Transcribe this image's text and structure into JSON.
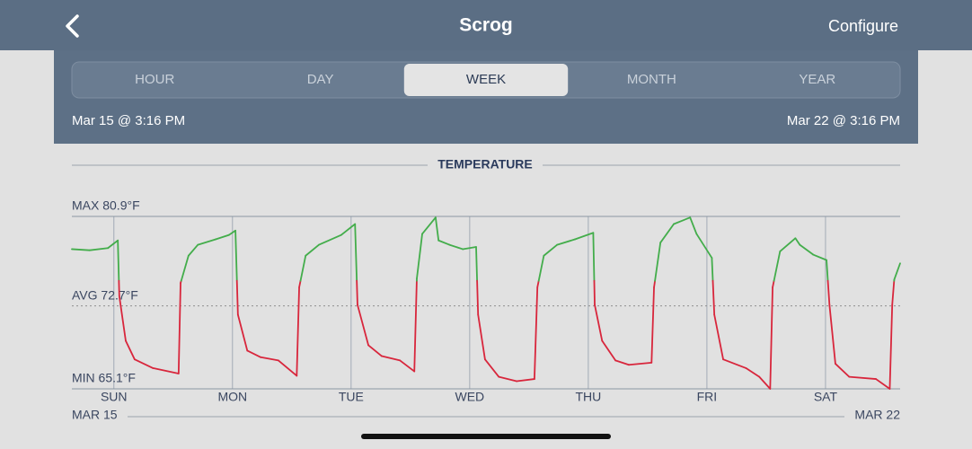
{
  "header": {
    "title": "Scrog",
    "action": "Configure"
  },
  "tabs": [
    "HOUR",
    "DAY",
    "WEEK",
    "MONTH",
    "YEAR"
  ],
  "selected_tab": 2,
  "range": {
    "start": "Mar 15 @ 3:16 PM",
    "end": "Mar 22 @ 3:16 PM"
  },
  "chart_data": {
    "type": "line",
    "title": "TEMPERATURE",
    "x_start_label": "MAR 15",
    "x_end_label": "MAR 22",
    "xlim": [
      0,
      167.6
    ],
    "ylim": [
      65.1,
      80.9
    ],
    "yticks": [
      {
        "value": 80.9,
        "label": "MAX 80.9°F"
      },
      {
        "value": 72.7,
        "label": "AVG 72.7°F"
      },
      {
        "value": 65.1,
        "label": "MIN 65.1°F"
      }
    ],
    "xticks": [
      {
        "value": 8.5,
        "label": "SUN"
      },
      {
        "value": 32.5,
        "label": "MON"
      },
      {
        "value": 56.5,
        "label": "TUE"
      },
      {
        "value": 80.5,
        "label": "WED"
      },
      {
        "value": 104.5,
        "label": "THU"
      },
      {
        "value": 128.5,
        "label": "FRI"
      },
      {
        "value": 152.5,
        "label": "SAT"
      }
    ],
    "color_threshold": 75,
    "series": [
      {
        "color": "#43ad4b",
        "low_color": "#d8263c",
        "x": [
          0,
          3.6,
          7.3,
          9.3,
          9.6,
          10.9,
          12.7,
          16.4,
          21.6,
          22.0,
          23.6,
          25.5,
          29.1,
          31.8,
          33.1,
          33.6,
          35.5,
          38.2,
          41.8,
          45.5,
          46.0,
          47.3,
          50.0,
          54.5,
          57.3,
          57.8,
          60.0,
          62.7,
          66.4,
          69.3,
          69.8,
          70.9,
          73.6,
          74.2,
          76.4,
          79.1,
          81.8,
          82.2,
          83.6,
          86.4,
          90.0,
          93.6,
          94.2,
          95.5,
          98.2,
          101.8,
          105.5,
          105.8,
          107.3,
          110.0,
          112.7,
          117.3,
          117.8,
          119.1,
          121.8,
          125.1,
          126.4,
          129.5,
          130.0,
          131.8,
          136.4,
          139.1,
          141.3,
          141.8,
          143.3,
          146.4,
          147.3,
          150.0,
          152.7,
          153.3,
          154.5,
          157.3,
          162.7,
          165.5,
          166.0,
          166.4,
          167.6
        ],
        "values": [
          77.9,
          77.8,
          78.0,
          78.7,
          73.6,
          69.5,
          67.8,
          67.0,
          66.5,
          74.8,
          77.3,
          78.3,
          78.8,
          79.2,
          79.6,
          71.9,
          68.6,
          68.0,
          67.7,
          66.3,
          74.4,
          77.3,
          78.3,
          79.2,
          80.2,
          72.8,
          69.1,
          68.1,
          67.7,
          66.7,
          75.2,
          79.3,
          80.8,
          78.7,
          78.3,
          77.9,
          78.1,
          71.9,
          67.8,
          66.2,
          65.8,
          66.0,
          74.4,
          77.3,
          78.3,
          78.8,
          79.4,
          72.8,
          69.5,
          67.7,
          67.3,
          67.5,
          74.4,
          78.5,
          80.2,
          80.8,
          79.3,
          77.1,
          71.9,
          67.8,
          67.0,
          66.2,
          65.1,
          74.4,
          77.7,
          78.9,
          78.3,
          77.4,
          76.9,
          72.8,
          67.4,
          66.2,
          66.0,
          65.1,
          72.8,
          75.1,
          76.6
        ]
      }
    ]
  }
}
